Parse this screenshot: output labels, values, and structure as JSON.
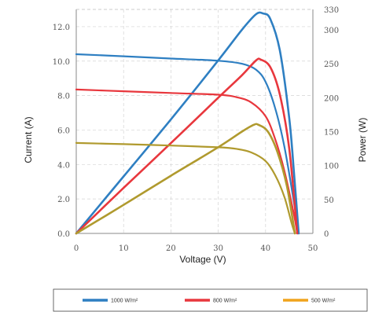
{
  "chart_data": {
    "type": "line",
    "xlabel": "Voltage (V)",
    "ylabel_left": "Current (A)",
    "ylabel_right": "Power (W)",
    "x_range": [
      0,
      50
    ],
    "y_left_range": [
      0,
      13
    ],
    "y_right_range": [
      0,
      330
    ],
    "x_ticks": [
      "0",
      "10",
      "20",
      "30",
      "40",
      "50"
    ],
    "y_left_ticks": [
      "0.0",
      "2.0",
      "4.0",
      "6.0",
      "8.0",
      "10.0",
      "12.0"
    ],
    "y_right_ticks": [
      "0",
      "50",
      "100",
      "150",
      "200",
      "250",
      "300",
      "330"
    ],
    "grid": true,
    "legend_position": "bottom",
    "series": [
      {
        "name": "1000 W/m²",
        "color": "#2e7fc2",
        "iv_current_A": [
          [
            0,
            10.4
          ],
          [
            10,
            10.28
          ],
          [
            20,
            10.15
          ],
          [
            30,
            10.02
          ],
          [
            35,
            9.85
          ],
          [
            38,
            9.5
          ],
          [
            40,
            8.8
          ],
          [
            42,
            7.3
          ],
          [
            44,
            5.0
          ],
          [
            46,
            1.8
          ],
          [
            47,
            0
          ]
        ],
        "pv_power_W": [
          [
            0,
            0
          ],
          [
            10,
            84
          ],
          [
            20,
            168
          ],
          [
            30,
            255
          ],
          [
            35,
            300
          ],
          [
            38,
            323
          ],
          [
            39.5,
            324
          ],
          [
            41,
            316
          ],
          [
            43,
            270
          ],
          [
            45,
            170
          ],
          [
            46,
            90
          ],
          [
            47,
            0
          ]
        ]
      },
      {
        "name": "800 W/m²",
        "color": "#e8373d",
        "iv_current_A": [
          [
            0,
            8.35
          ],
          [
            10,
            8.25
          ],
          [
            20,
            8.15
          ],
          [
            30,
            8.05
          ],
          [
            34,
            7.9
          ],
          [
            37,
            7.6
          ],
          [
            40,
            6.8
          ],
          [
            42,
            5.5
          ],
          [
            44,
            3.6
          ],
          [
            46,
            1.1
          ],
          [
            46.7,
            0
          ]
        ],
        "pv_power_W": [
          [
            0,
            0
          ],
          [
            10,
            67
          ],
          [
            20,
            133
          ],
          [
            30,
            200
          ],
          [
            35,
            233
          ],
          [
            38,
            255
          ],
          [
            39,
            256
          ],
          [
            41,
            245
          ],
          [
            43,
            205
          ],
          [
            45,
            125
          ],
          [
            46.7,
            0
          ]
        ]
      },
      {
        "name": "500 W/m²",
        "color": "#b09a2e",
        "iv_current_A": [
          [
            0,
            5.25
          ],
          [
            10,
            5.18
          ],
          [
            20,
            5.1
          ],
          [
            30,
            5.0
          ],
          [
            34,
            4.9
          ],
          [
            37,
            4.7
          ],
          [
            40,
            4.2
          ],
          [
            42,
            3.4
          ],
          [
            44,
            2.1
          ],
          [
            45.5,
            0.6
          ],
          [
            46.2,
            0
          ]
        ],
        "pv_power_W": [
          [
            0,
            0
          ],
          [
            10,
            42
          ],
          [
            20,
            85
          ],
          [
            30,
            127
          ],
          [
            35,
            150
          ],
          [
            37.5,
            160
          ],
          [
            38.5,
            160
          ],
          [
            40.5,
            150
          ],
          [
            42.5,
            120
          ],
          [
            44.5,
            70
          ],
          [
            46.2,
            0
          ]
        ]
      }
    ]
  },
  "legend": {
    "items": [
      {
        "label": "1000 W/m²",
        "color": "#2e7fc2"
      },
      {
        "label": "800 W/m²",
        "color": "#e8373d"
      },
      {
        "label": "500 W/m²",
        "color": "#f0a31c"
      }
    ]
  }
}
